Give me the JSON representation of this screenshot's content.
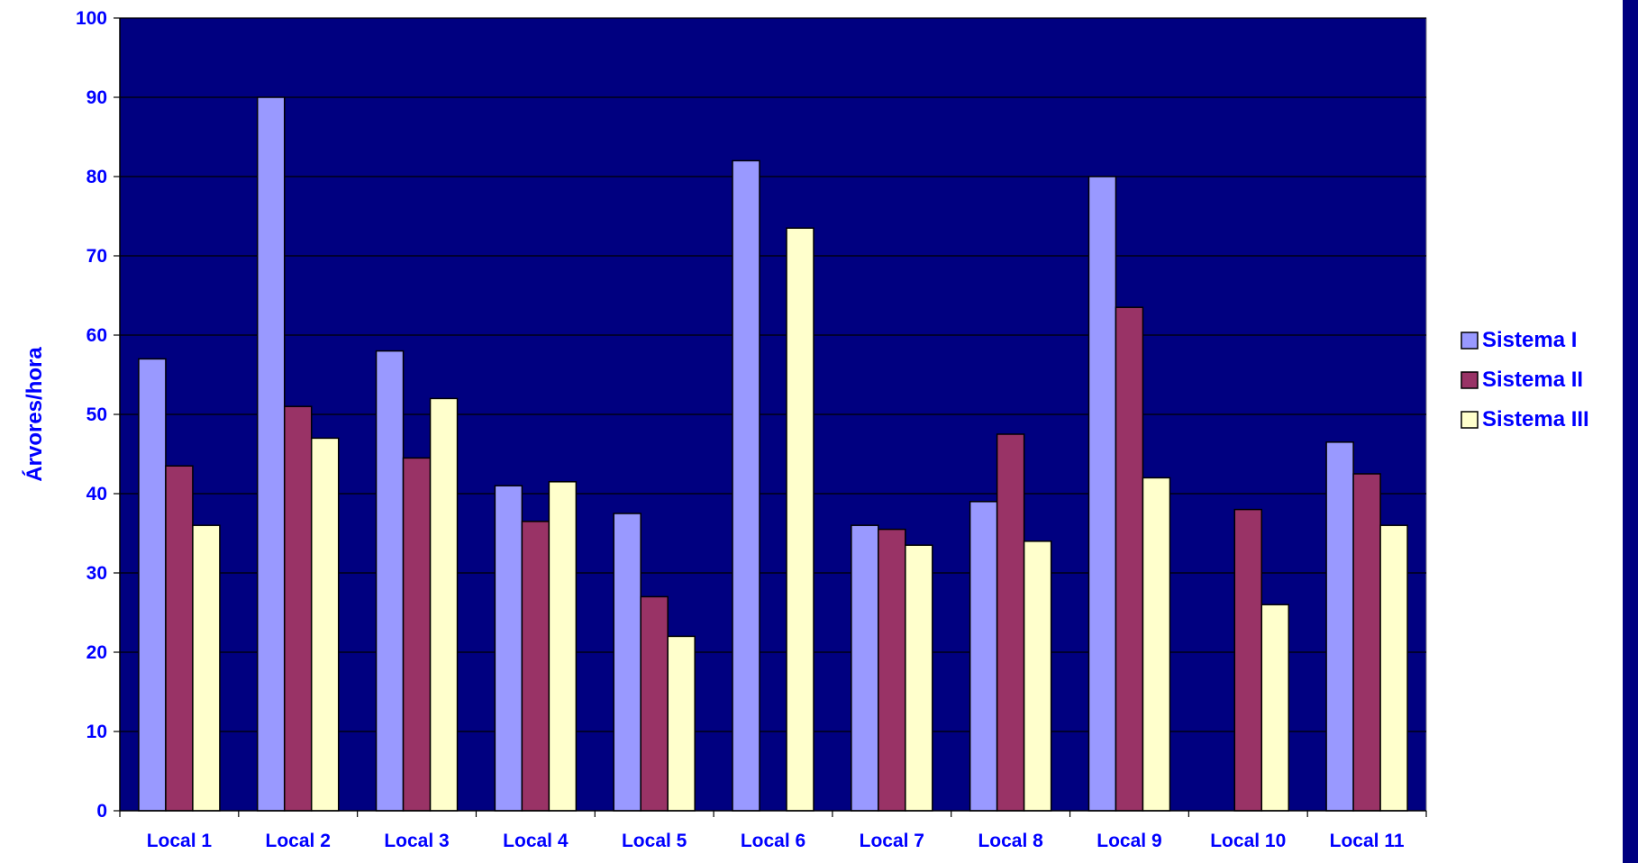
{
  "chart_data": {
    "type": "bar",
    "title": "",
    "xlabel": "",
    "ylabel": "Árvores/hora",
    "ylim": [
      0,
      100
    ],
    "yticks": [
      0,
      10,
      20,
      30,
      40,
      50,
      60,
      70,
      80,
      90,
      100
    ],
    "grid": true,
    "legend_position": "right",
    "categories": [
      "Local 1",
      "Local 2",
      "Local 3",
      "Local 4",
      "Local 5",
      "Local 6",
      "Local 7",
      "Local 8",
      "Local 9",
      "Local 10",
      "Local 11"
    ],
    "series": [
      {
        "name": "Sistema I",
        "color": "#9999FF",
        "values": [
          57,
          90,
          58,
          41,
          37.5,
          82,
          36,
          39,
          80,
          0,
          46.5
        ]
      },
      {
        "name": "Sistema II",
        "color": "#993366",
        "values": [
          43.5,
          51,
          44.5,
          36.5,
          27,
          0,
          35.5,
          47.5,
          63.5,
          38,
          42.5
        ]
      },
      {
        "name": "Sistema III",
        "color": "#FFFFCC",
        "values": [
          36,
          47,
          52,
          41.5,
          22,
          73.5,
          33.5,
          34,
          42,
          26,
          36
        ]
      }
    ]
  },
  "colors": {
    "plot_background": "#000080",
    "text": "#0000FF",
    "gridline": "#000000",
    "bar_outline": "#000000",
    "edge_bar": "#000080"
  }
}
